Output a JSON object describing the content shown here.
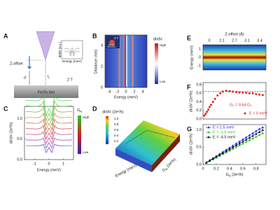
{
  "panels": {
    "A": {
      "letter": "A",
      "z_offset": "Z-offset",
      "d": "d",
      "current": {
        "base": "I",
        "sub": "t"
      },
      "field": "2 T",
      "sample": "Fe(Te,Se)",
      "inset_y": "dI/dV (a.u.)",
      "inset_x": "Energy (meV)"
    },
    "B": {
      "letter": "B",
      "inset_field": "2 T",
      "scale": "10 nm",
      "ylabel": "Distance (nm)",
      "xlabel": "Energy (meV)",
      "xlim": [
        -5,
        5
      ],
      "xticks": [
        -4,
        -2,
        0,
        2,
        4
      ],
      "ylim": [
        0,
        5
      ],
      "yticks": [
        0,
        2,
        4
      ],
      "colorbar": {
        "title": "dI/dV",
        "high": "High",
        "low": "Low"
      }
    },
    "C": {
      "letter": "C",
      "ylabel": "dI/dV (2e²/h)",
      "xlabel": "Energy (meV)",
      "xlim": [
        -1.7,
        1.7
      ],
      "xticks": [
        -1,
        0,
        1
      ],
      "ylim": [
        0,
        1.3
      ],
      "yticks": [
        {
          "value": 0,
          "label": "0.0"
        },
        {
          "value": 0.5,
          "label": "0.5"
        },
        {
          "value": 1,
          "label": "1.0"
        }
      ],
      "colorbar": {
        "title": {
          "base": "G",
          "sub": "N"
        },
        "high": "High",
        "low": "Low"
      }
    },
    "D": {
      "letter": "D",
      "colorbar": {
        "title": "dI/dV (2e²/h)",
        "lim": [
          0.1,
          1.1
        ],
        "ticks": [
          0.2,
          0.4,
          0.6,
          0.8,
          {
            "value": 1,
            "label": "1.0"
          }
        ]
      },
      "xlabel": "Energy (meV)",
      "ylabel": {
        "base": "G",
        "sub": "N",
        "unit": " (2e²/h)"
      }
    },
    "E": {
      "letter": "E",
      "top_label": "Z-offset (Å)",
      "top_ticks": [
        "0",
        "2.1",
        "2.7",
        "3.1",
        "3.4"
      ],
      "ylabel": "Energy (meV)",
      "ylim": [
        -1.5,
        1.5
      ],
      "yticks": [
        -1,
        0,
        1
      ]
    }
  },
  "chart_data": [
    {
      "type": "scatter",
      "letter": "F",
      "ylabel": "dI/dV (2e²/h)",
      "xlim": [
        0,
        0.95
      ],
      "ylim": [
        0,
        0.85
      ],
      "yticks": [
        {
          "value": 0,
          "label": "0.0"
        },
        0.2,
        0.4,
        0.6,
        0.8
      ],
      "x": [
        0.02,
        0.04,
        0.06,
        0.08,
        0.1,
        0.12,
        0.15,
        0.18,
        0.22,
        0.26,
        0.3,
        0.35,
        0.4,
        0.45,
        0.5,
        0.55,
        0.6,
        0.65,
        0.7,
        0.75,
        0.8,
        0.85,
        0.9
      ],
      "series": [
        {
          "name": "E = 0 meV",
          "color": "#e8201c",
          "values": [
            0.08,
            0.12,
            0.17,
            0.22,
            0.28,
            0.33,
            0.4,
            0.47,
            0.55,
            0.6,
            0.64,
            0.66,
            0.65,
            0.64,
            0.63,
            0.62,
            0.62,
            0.61,
            0.6,
            0.6,
            0.58,
            0.57,
            0.56
          ]
        }
      ],
      "reference_line": 0.64,
      "annotation": "G₀ = 0.64 G₀",
      "legend": "lower right"
    },
    {
      "type": "line",
      "letter": "G",
      "ylabel": "dI/dV (2e²/h)",
      "xlabel": {
        "base": "G",
        "sub": "N",
        "unit": " (2e²/h)"
      },
      "xlim": [
        0,
        0.95
      ],
      "ylim": [
        0,
        1.15
      ],
      "xticks": [
        0,
        0.2,
        0.4,
        0.6,
        0.8
      ],
      "yticks": [
        {
          "value": 0,
          "label": "0.0"
        },
        0.5,
        {
          "value": 1,
          "label": "1.0"
        }
      ],
      "x": [
        0.05,
        0.1,
        0.15,
        0.2,
        0.25,
        0.3,
        0.35,
        0.4,
        0.45,
        0.5,
        0.55,
        0.6,
        0.65,
        0.7,
        0.75,
        0.8,
        0.85,
        0.9
      ],
      "series": [
        {
          "name": "E = 1.5 meV",
          "color": "#1c1cff",
          "values": [
            0.06,
            0.12,
            0.18,
            0.24,
            0.3,
            0.36,
            0.42,
            0.48,
            0.54,
            0.6,
            0.66,
            0.72,
            0.78,
            0.84,
            0.9,
            0.96,
            1.02,
            1.07
          ]
        },
        {
          "name": "E = -1.5 meV",
          "color": "#22c422",
          "values": [
            0.05,
            0.1,
            0.15,
            0.2,
            0.25,
            0.3,
            0.35,
            0.4,
            0.45,
            0.5,
            0.55,
            0.6,
            0.65,
            0.7,
            0.75,
            0.8,
            0.85,
            0.9
          ]
        },
        {
          "name": "E = -4.5 meV",
          "color": "#111111",
          "values": [
            0.055,
            0.11,
            0.165,
            0.22,
            0.275,
            0.33,
            0.385,
            0.44,
            0.495,
            0.55,
            0.605,
            0.66,
            0.715,
            0.77,
            0.825,
            0.88,
            0.935,
            0.99
          ]
        }
      ],
      "legend": "upper left"
    }
  ]
}
